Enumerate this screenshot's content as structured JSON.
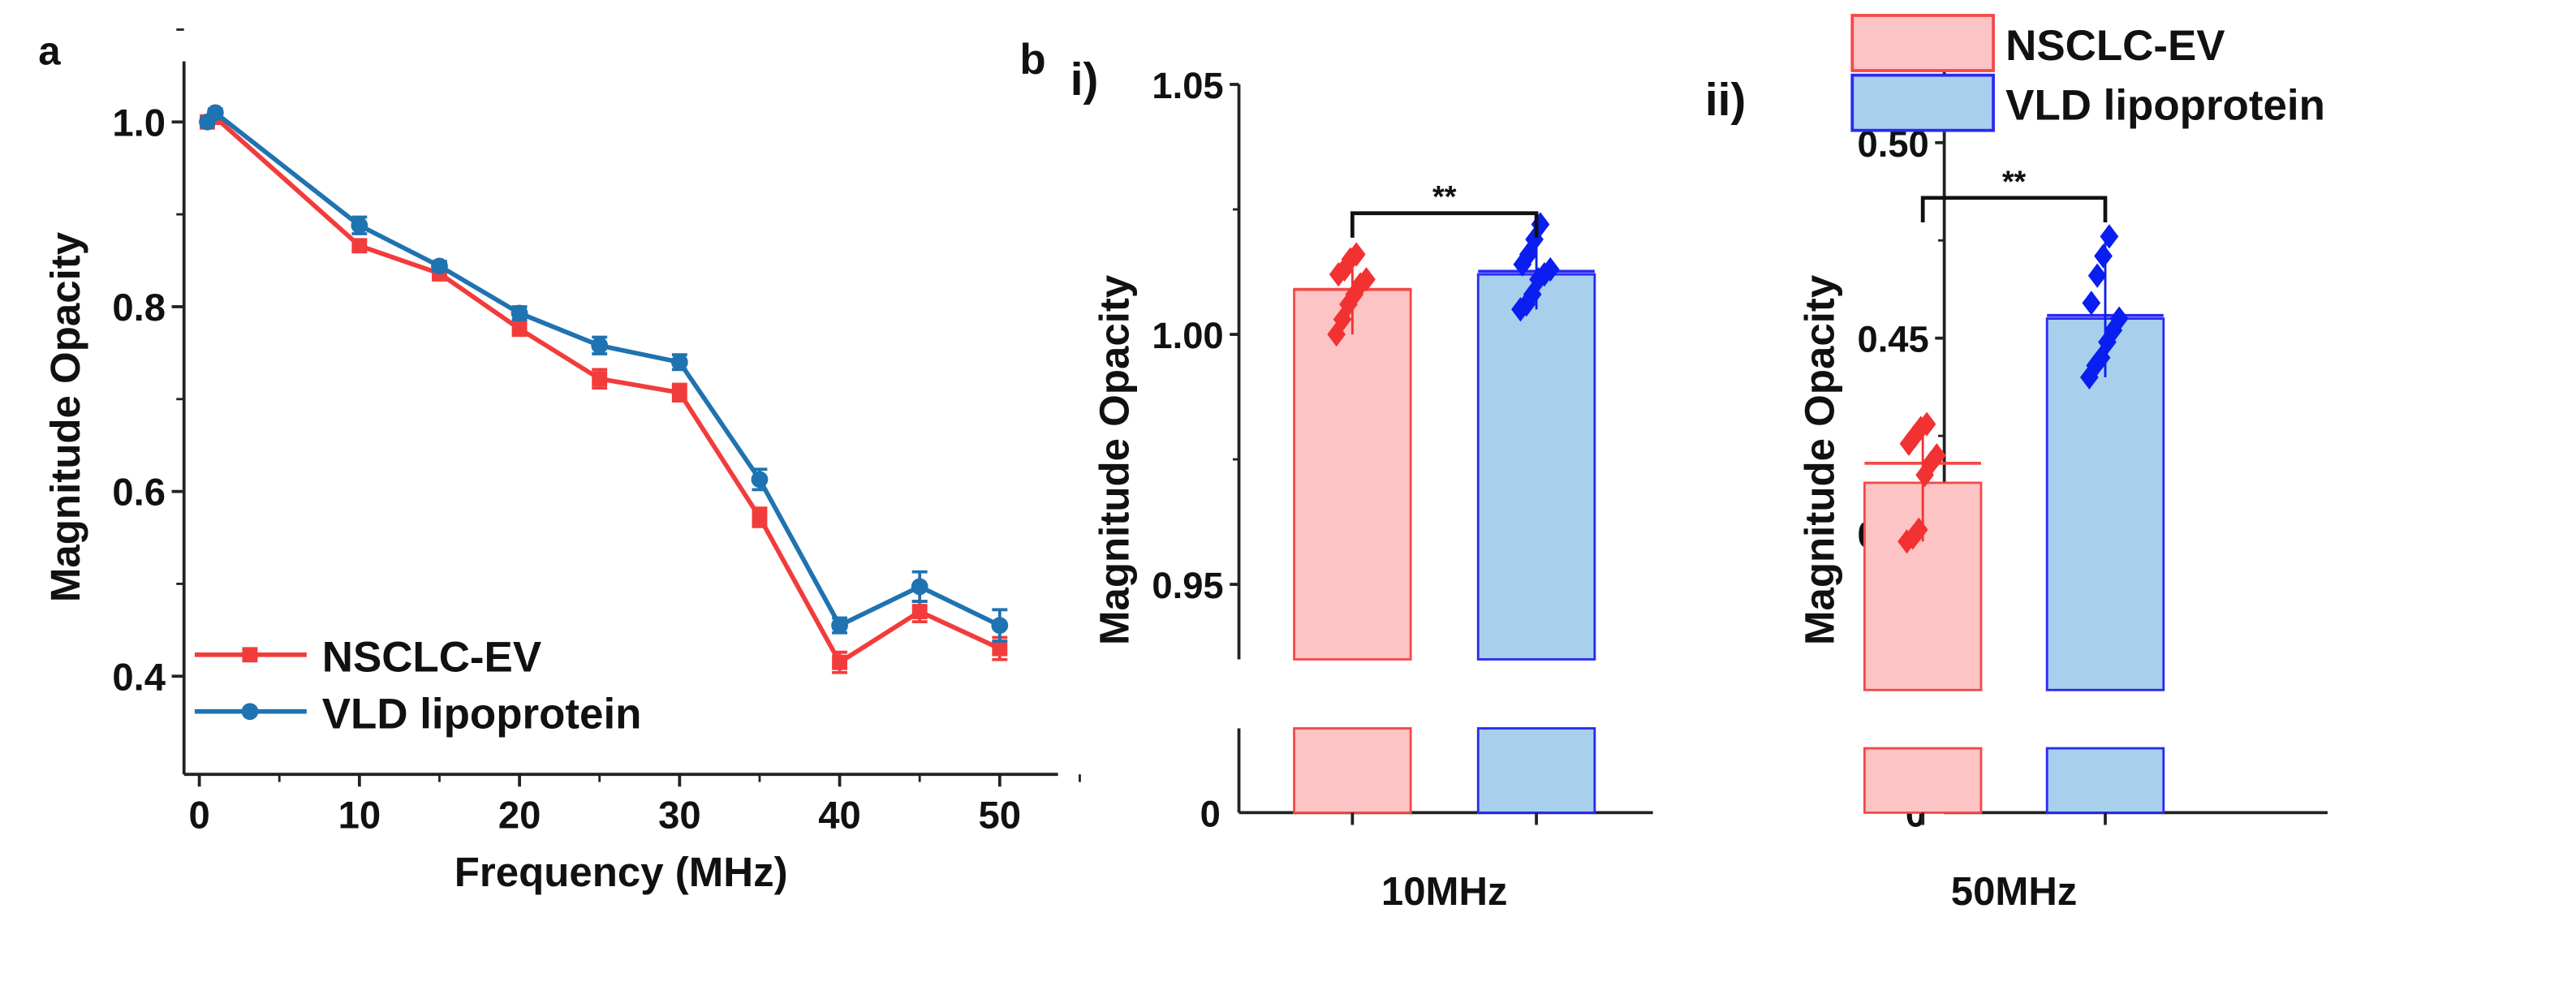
{
  "chart_data": [
    {
      "type": "line",
      "panel_label": "a",
      "xlabel": "Frequency (MHz)",
      "ylabel": "Magnitude Opacity",
      "xlim": [
        -0.5,
        55
      ],
      "ylim": [
        0.3,
        1.05
      ],
      "xticks": [
        0,
        10,
        20,
        30,
        40,
        50
      ],
      "xtick_labels": [
        "0",
        "10",
        "20",
        "30",
        "40",
        "50"
      ],
      "yticks": [
        0.4,
        0.6,
        0.8,
        1.0
      ],
      "ytick_labels": [
        "0.4",
        "0.6",
        "0.8",
        "1.0"
      ],
      "legend_position": "bottom-left",
      "x": [
        0.5,
        1,
        10,
        15,
        20,
        25,
        30,
        35,
        40,
        45,
        50
      ],
      "series": [
        {
          "name": "NSCLC-EV",
          "color": "#f23c3c",
          "marker": "square",
          "values": [
            1.0,
            1.005,
            0.866,
            0.836,
            0.776,
            0.722,
            0.707,
            0.572,
            0.415,
            0.47,
            0.43
          ],
          "errors": [
            0.003,
            0.004,
            0.006,
            0.007,
            0.007,
            0.01,
            0.009,
            0.01,
            0.011,
            0.011,
            0.012
          ]
        },
        {
          "name": "VLD lipoprotein",
          "color": "#1f73b0",
          "marker": "circle",
          "values": [
            1.0,
            1.01,
            0.888,
            0.844,
            0.793,
            0.758,
            0.74,
            0.613,
            0.455,
            0.497,
            0.455
          ],
          "errors": [
            0.003,
            0.004,
            0.009,
            0.005,
            0.007,
            0.009,
            0.008,
            0.011,
            0.008,
            0.016,
            0.017
          ]
        }
      ]
    },
    {
      "type": "bar",
      "panel_label": "b",
      "sub_label": "i)",
      "ylabel": "Magnitude Opacity",
      "category": "10MHz",
      "yticks": [
        0.95,
        1.0,
        1.05
      ],
      "ytick_labels": [
        "0.95",
        "1.00",
        "1.05"
      ],
      "zero_label": "0",
      "ylim_upper": [
        0.935,
        1.05
      ],
      "axis_break": true,
      "significance": "**",
      "series": [
        {
          "name": "NSCLC-EV",
          "value": 1.009,
          "error": 0.0,
          "points": [
            1.0,
            1.003,
            1.006,
            1.008,
            1.01,
            1.011,
            1.012,
            1.013,
            1.015,
            1.016
          ]
        },
        {
          "name": "VLD lipoprotein",
          "value": 1.012,
          "error": 0.0006,
          "points": [
            1.005,
            1.006,
            1.008,
            1.011,
            1.012,
            1.013,
            1.014,
            1.016,
            1.019,
            1.022
          ]
        }
      ]
    },
    {
      "type": "bar",
      "sub_label": "ii)",
      "ylabel": "Magnitude Opacity",
      "category": "50MHz",
      "yticks": [
        0.4,
        0.45,
        0.5
      ],
      "ytick_labels": [
        "0.40",
        "0.45",
        "0.50"
      ],
      "zero_label": "0",
      "ylim_upper": [
        0.36,
        0.52
      ],
      "axis_break": true,
      "significance": "**",
      "legend_position": "top-right",
      "series": [
        {
          "name": "NSCLC-EV",
          "value": 0.413,
          "error": 0.005,
          "points": [
            0.398,
            0.399,
            0.401,
            0.415,
            0.418,
            0.42,
            0.423,
            0.425,
            0.427,
            0.428
          ]
        },
        {
          "name": "VLD lipoprotein",
          "value": 0.455,
          "error": 0.0008,
          "points": [
            0.44,
            0.443,
            0.445,
            0.449,
            0.452,
            0.455,
            0.459,
            0.466,
            0.471,
            0.476
          ]
        }
      ]
    }
  ],
  "colors": {
    "red_line": "#f23c3c",
    "blue_line": "#1f73b0",
    "red_fill": "#fcc4c4",
    "red_edge": "#f24a4a",
    "blue_fill": "#a8d0ec",
    "blue_edge": "#2a2af0",
    "red_point": "#f23232",
    "blue_point": "#0a1ef0"
  }
}
